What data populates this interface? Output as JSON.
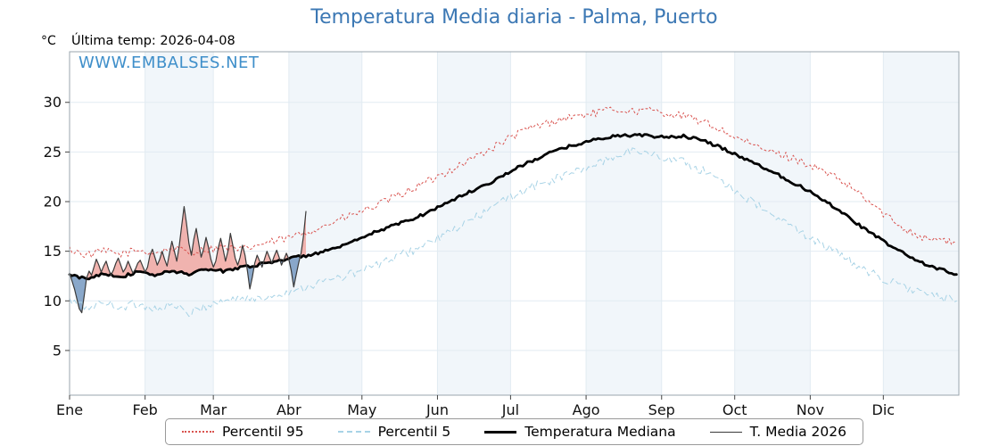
{
  "title": "Temperatura Media diaria - Palma, Puerto",
  "header": {
    "unit_label": "°C",
    "last_temp_label": "Última temp: 2026-04-08"
  },
  "watermark": "WWW.EMBALSES.NET",
  "colors": {
    "title_color": "#3c78b4",
    "watermark_color": "#3f8fca",
    "percentil95_color": "#d9534f",
    "percentil5_color": "#a8d3e6",
    "median_color": "#000000",
    "media2026_color": "#3a3a3a",
    "fill_above_color": "#f0a29c",
    "fill_below_color": "#7d9ec4"
  },
  "chart_data": {
    "type": "line",
    "title": "Temperatura Media diaria - Palma, Puerto",
    "xlabel": "",
    "ylabel": "°C",
    "legend_position": "bottom",
    "grid": true,
    "x_tick_labels": [
      "Ene",
      "Feb",
      "Mar",
      "Abr",
      "May",
      "Jun",
      "Jul",
      "Ago",
      "Sep",
      "Oct",
      "Nov",
      "Dic"
    ],
    "month_start_days": [
      0,
      31,
      59,
      90,
      120,
      151,
      181,
      212,
      243,
      273,
      304,
      334
    ],
    "x_range_days": [
      0,
      365
    ],
    "y_ticks": [
      5,
      10,
      15,
      20,
      25,
      30
    ],
    "y_range": [
      0.5,
      35.1
    ],
    "series": [
      {
        "name": "Percentil 95",
        "color": "#d9534f",
        "dash": "2 3",
        "width": 1,
        "jitter": 0.4,
        "legend_dash": "dotted",
        "legend_weight": 2,
        "step": 7,
        "values": [
          15.2,
          14.6,
          15.0,
          14.7,
          15.1,
          14.8,
          15.3,
          14.9,
          15.2,
          15.4,
          15.1,
          15.6,
          16.0,
          16.4,
          17.0,
          17.6,
          18.3,
          18.9,
          19.6,
          20.4,
          21.2,
          22.0,
          22.9,
          23.8,
          24.7,
          25.6,
          26.6,
          27.4,
          27.9,
          28.4,
          28.7,
          29.0,
          29.3,
          29.1,
          29.2,
          28.9,
          28.6,
          28.1,
          27.4,
          26.5,
          25.7,
          25.1,
          24.6,
          24.0,
          23.2,
          22.3,
          21.2,
          19.8,
          18.4,
          17.3,
          16.4,
          16.2,
          15.7
        ]
      },
      {
        "name": "Percentil 5",
        "color": "#a8d3e6",
        "dash": "6 4",
        "width": 1,
        "jitter": 0.45,
        "legend_dash": "dashed",
        "legend_weight": 2,
        "step": 7,
        "values": [
          10.0,
          9.3,
          9.8,
          9.4,
          9.7,
          9.2,
          9.6,
          8.7,
          9.5,
          10.0,
          10.3,
          10.1,
          10.6,
          11.0,
          11.5,
          12.0,
          12.4,
          13.0,
          13.6,
          14.3,
          15.0,
          15.8,
          16.6,
          17.6,
          18.6,
          19.6,
          20.6,
          21.4,
          22.0,
          22.6,
          23.2,
          23.8,
          24.6,
          25.2,
          24.8,
          24.4,
          24.0,
          23.2,
          22.4,
          21.2,
          20.0,
          18.8,
          17.8,
          16.8,
          15.8,
          14.8,
          13.8,
          12.8,
          12.0,
          11.4,
          10.8,
          10.3,
          10.1
        ]
      },
      {
        "name": "Temperatura Mediana",
        "color": "#000000",
        "dash": "",
        "width": 2.8,
        "jitter": 0.15,
        "legend_dash": "solid",
        "legend_weight": 3,
        "step": 7,
        "values": [
          12.6,
          12.2,
          12.8,
          12.4,
          12.9,
          12.6,
          13.0,
          12.7,
          13.2,
          13.0,
          13.4,
          13.6,
          14.0,
          14.3,
          14.6,
          15.0,
          15.5,
          16.2,
          17.0,
          17.6,
          18.2,
          18.9,
          19.8,
          20.6,
          21.4,
          22.2,
          23.2,
          24.0,
          24.8,
          25.4,
          25.9,
          26.3,
          26.6,
          26.7,
          26.6,
          26.5,
          26.6,
          26.2,
          25.6,
          24.8,
          24.0,
          23.2,
          22.3,
          21.4,
          20.4,
          19.3,
          18.0,
          16.8,
          15.7,
          14.7,
          13.8,
          13.2,
          12.7
        ]
      },
      {
        "name": "T. Media 2026",
        "color": "#3a3a3a",
        "dash": "",
        "width": 1.2,
        "jitter": 0,
        "legend_dash": "solid",
        "legend_weight": 1.5,
        "step": 1,
        "values": [
          12.8,
          12.0,
          11.2,
          10.2,
          9.2,
          8.8,
          10.5,
          12.3,
          13.0,
          12.6,
          13.4,
          14.2,
          13.6,
          12.9,
          13.5,
          14.0,
          13.2,
          12.6,
          13.1,
          13.8,
          14.3,
          13.6,
          12.9,
          13.3,
          14.0,
          13.4,
          12.8,
          13.2,
          13.8,
          14.1,
          13.5,
          12.9,
          13.4,
          14.6,
          15.2,
          14.4,
          13.6,
          14.2,
          15.0,
          14.2,
          13.5,
          14.8,
          16.0,
          15.0,
          14.0,
          15.5,
          17.5,
          19.5,
          17.8,
          15.8,
          14.6,
          16.2,
          17.3,
          15.8,
          14.4,
          15.2,
          16.4,
          15.4,
          14.2,
          13.4,
          14.0,
          15.3,
          16.3,
          15.2,
          14.0,
          15.0,
          16.8,
          15.6,
          14.3,
          13.6,
          14.4,
          15.6,
          14.6,
          13.0,
          11.2,
          12.4,
          13.8,
          14.6,
          14.0,
          13.4,
          14.2,
          15.0,
          14.4,
          13.8,
          14.5,
          15.1,
          14.4,
          13.6,
          14.2,
          14.8,
          14.2,
          13.0,
          11.4,
          12.6,
          13.8,
          14.8,
          16.5,
          19.0
        ]
      }
    ],
    "fill": {
      "series": "T. Media 2026",
      "baseline": "Temperatura Mediana",
      "above_color": "#f0a29c",
      "above_opacity": 0.8,
      "below_color": "#7d9ec4",
      "below_opacity": 0.9
    }
  }
}
